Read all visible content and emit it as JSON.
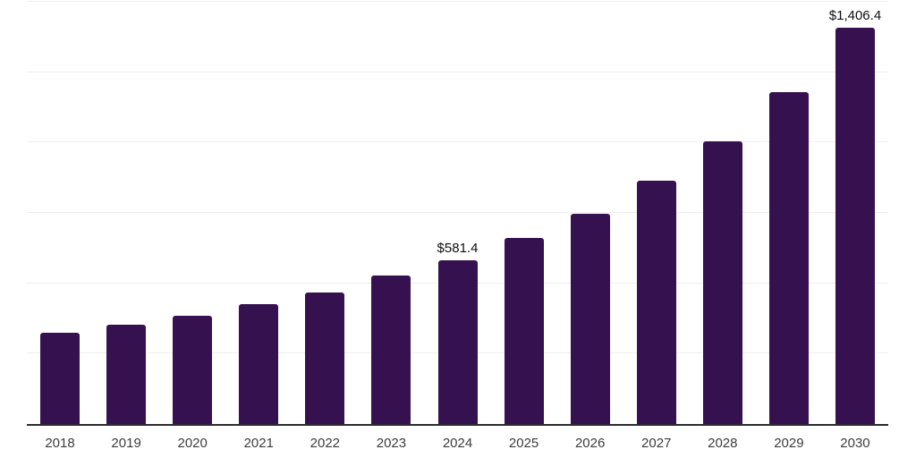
{
  "chart_data": {
    "type": "bar",
    "title": "",
    "xlabel": "",
    "ylabel": "",
    "categories": [
      "2018",
      "2019",
      "2020",
      "2021",
      "2022",
      "2023",
      "2024",
      "2025",
      "2026",
      "2027",
      "2028",
      "2029",
      "2030"
    ],
    "values": [
      325,
      352,
      383,
      425,
      466,
      527,
      581.4,
      660,
      747,
      865,
      1003,
      1178,
      1406.4
    ],
    "data_labels": [
      "",
      "",
      "",
      "",
      "",
      "",
      "$581.4",
      "",
      "",
      "",
      "",
      "",
      "$1,406.4"
    ],
    "ylim": [
      0,
      1500
    ],
    "gridline_step": 250,
    "grid": true,
    "legend": false,
    "colors": {
      "bar": "#361150",
      "gridline": "#efefef",
      "axis_line": "#2b2b2e",
      "value_label": "#0f0f0f",
      "tick_label": "#3d3d3d",
      "background": "#ffffff"
    }
  }
}
